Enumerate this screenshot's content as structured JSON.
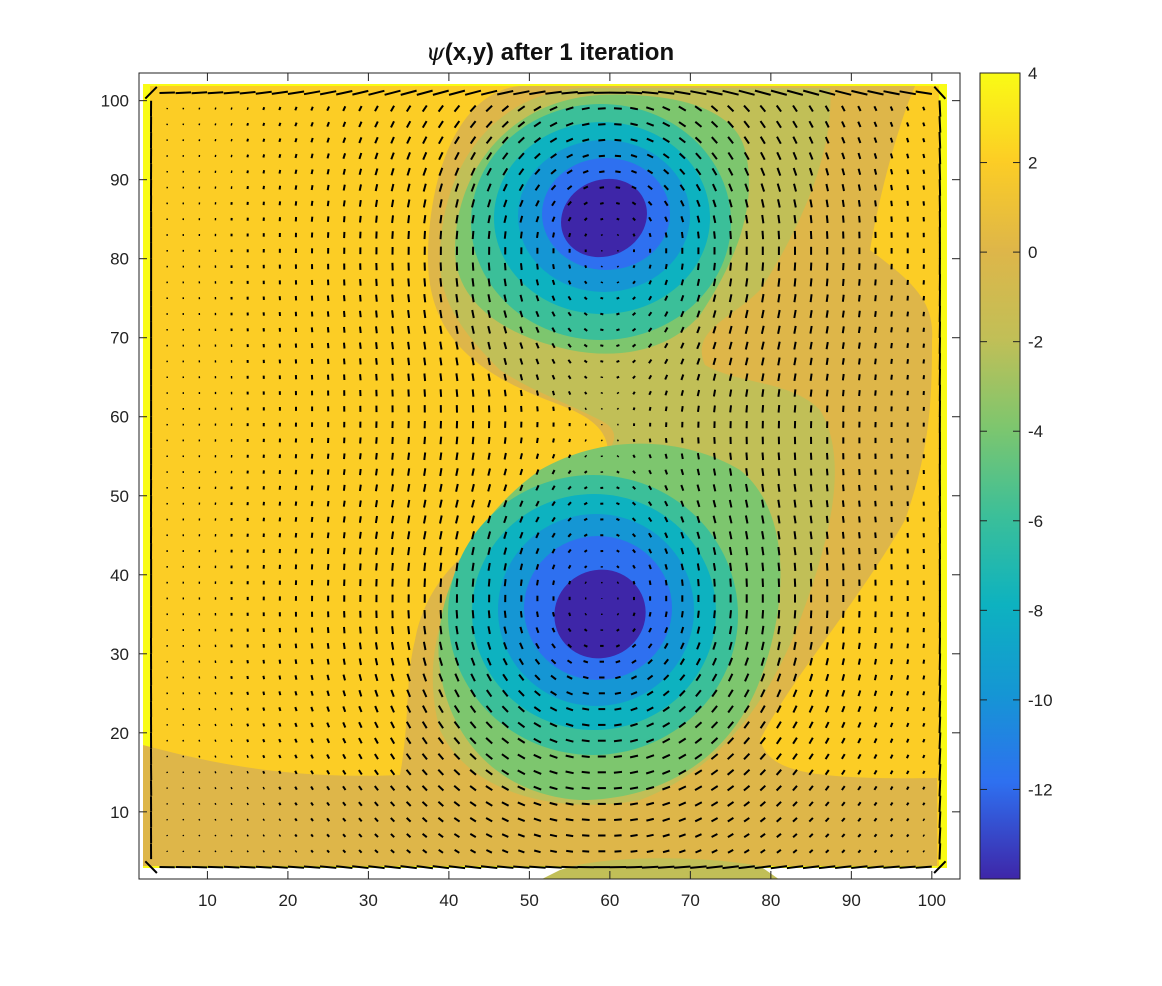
{
  "chart_data": {
    "type": "heatmap",
    "title_symbol": "ψ",
    "title_text": "(x,y) after 1 iteration",
    "xlabel": "",
    "ylabel": "",
    "xlim": [
      1.5,
      103.5
    ],
    "ylim": [
      1.5,
      103.5
    ],
    "x_ticks": [
      10,
      20,
      30,
      40,
      50,
      60,
      70,
      80,
      90,
      100
    ],
    "y_ticks": [
      10,
      20,
      30,
      40,
      50,
      60,
      70,
      80,
      90,
      100
    ],
    "grid": false,
    "colorbar": {
      "ticks": [
        4,
        2,
        0,
        -2,
        -4,
        -6,
        -8,
        -10,
        -12
      ],
      "range": [
        -14,
        4
      ]
    },
    "vortices": [
      {
        "x": 60,
        "y": 84,
        "min_value": -14
      },
      {
        "x": 59,
        "y": 34,
        "min_value": -14
      }
    ],
    "overlay": "velocity quiver field (black arrows)",
    "colormap": [
      "#3e26a8",
      "#4742e0",
      "#2e70f0",
      "#1596d4",
      "#0db2c0",
      "#3bbf99",
      "#7dc66e",
      "#c1bf57",
      "#deb649",
      "#fccd25",
      "#f9fb15"
    ]
  }
}
